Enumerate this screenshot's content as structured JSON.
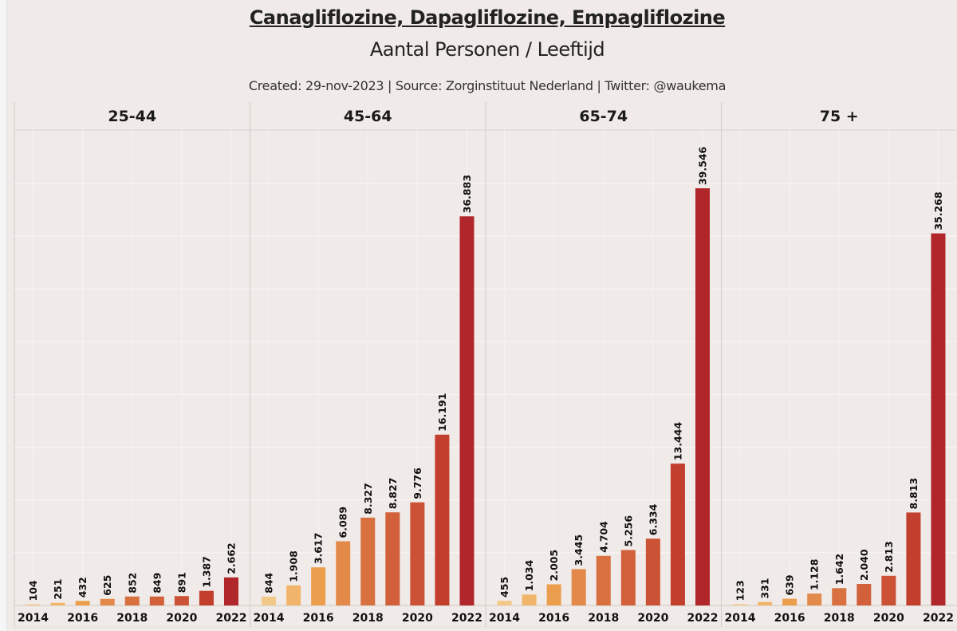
{
  "header": {
    "title": "Canagliflozine, Dapagliflozine, Empagliflozine",
    "subtitle": "Aantal Personen / Leeftijd",
    "caption": "Created: 29-nov-2023 | Source: Zorginstituut Nederland | Twitter: @waukema"
  },
  "chart_data": {
    "type": "bar",
    "title": "Canagliflozine, Dapagliflozine, Empagliflozine",
    "subtitle": "Aantal Personen / Leeftijd",
    "xlabel": "",
    "ylabel": "",
    "grid": true,
    "legend": "none",
    "ylim": [
      0,
      45000
    ],
    "categories": [
      "2014",
      "2015",
      "2016",
      "2017",
      "2018",
      "2019",
      "2020",
      "2021",
      "2022"
    ],
    "tick_labels": [
      "2014",
      "2016",
      "2018",
      "2020",
      "2022"
    ],
    "color_scale": [
      "#f3c98a",
      "#f0b56a",
      "#ec9e4f",
      "#e3894a",
      "#d9703f",
      "#d2603a",
      "#cb5234",
      "#c23e2d",
      "#b1262b"
    ],
    "panels": [
      {
        "name": "25-44",
        "values": [
          104,
          251,
          432,
          625,
          852,
          849,
          891,
          1387,
          2662
        ],
        "labels": [
          "104",
          "251",
          "432",
          "625",
          "852",
          "849",
          "891",
          "1.387",
          "2.662"
        ]
      },
      {
        "name": "45-64",
        "values": [
          844,
          1908,
          3617,
          6089,
          8327,
          8827,
          9776,
          16191,
          36883
        ],
        "labels": [
          "844",
          "1.908",
          "3.617",
          "6.089",
          "8.327",
          "8.827",
          "9.776",
          "16.191",
          "36.883"
        ]
      },
      {
        "name": "65-74",
        "values": [
          455,
          1034,
          2005,
          3445,
          4704,
          5256,
          6334,
          13444,
          39546
        ],
        "labels": [
          "455",
          "1.034",
          "2.005",
          "3.445",
          "4.704",
          "5.256",
          "6.334",
          "13.444",
          "39.546"
        ]
      },
      {
        "name": "75 +",
        "values": [
          123,
          331,
          639,
          1128,
          1642,
          2040,
          2813,
          8813,
          35268
        ],
        "labels": [
          "123",
          "331",
          "639",
          "1.128",
          "1.642",
          "2.040",
          "2.813",
          "8.813",
          "35.268"
        ]
      }
    ]
  }
}
